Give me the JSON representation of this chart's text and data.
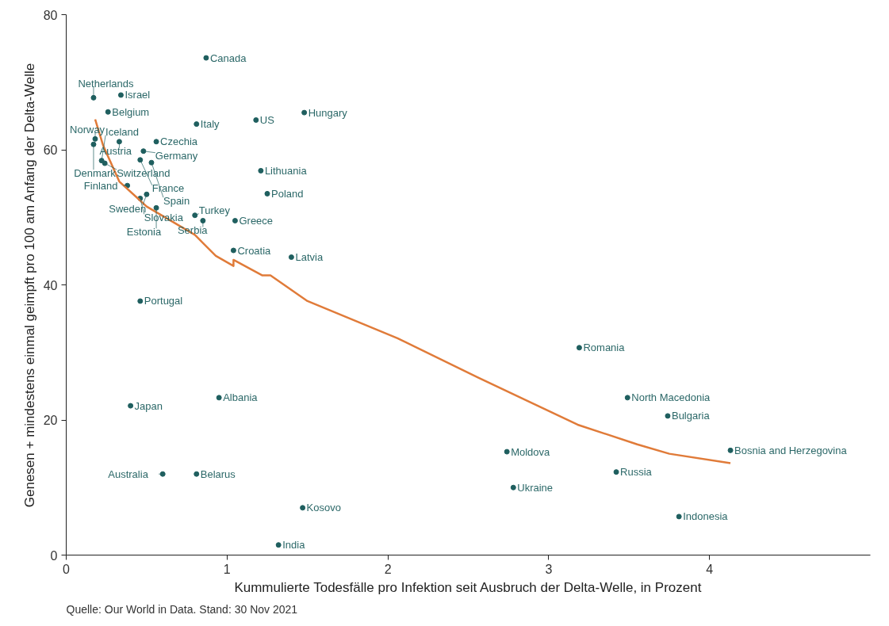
{
  "chart_data": {
    "type": "scatter",
    "xlabel": "Kummulierte Todesfälle pro Infektion seit Ausbruch der Delta-Welle, in Prozent",
    "ylabel": "Genesen + mindestens einmal geimpft pro 100 am Anfang der Delta-Welle",
    "xlim": [
      0,
      5
    ],
    "ylim": [
      0,
      80
    ],
    "xticks": [
      0,
      1,
      2,
      3,
      4
    ],
    "yticks": [
      0,
      20,
      40,
      60,
      80
    ],
    "grid": false,
    "series": [
      {
        "marker": "circle",
        "color": "#1f5f5f",
        "x": [
          0.87,
          0.34,
          0.17,
          0.26,
          0.81,
          1.18,
          1.48,
          0.18,
          0.17,
          0.33,
          0.56,
          0.48,
          0.22,
          0.24,
          0.46,
          0.53,
          1.21,
          0.38,
          0.5,
          0.46,
          1.25,
          0.56,
          0.8,
          0.85,
          1.05,
          1.04,
          1.4,
          0.46,
          3.19,
          0.95,
          0.4,
          3.49,
          3.74,
          2.74,
          4.13,
          0.6,
          0.81,
          3.42,
          2.78,
          1.47,
          3.81,
          1.32
        ],
        "values": [
          73.6,
          68.1,
          67.7,
          65.6,
          63.8,
          64.4,
          65.5,
          61.6,
          60.8,
          61.2,
          61.2,
          59.8,
          58.4,
          58.0,
          58.5,
          58.1,
          56.9,
          54.7,
          53.4,
          52.8,
          53.5,
          51.4,
          50.3,
          49.5,
          49.5,
          45.1,
          44.1,
          37.6,
          30.7,
          23.3,
          22.1,
          23.3,
          20.6,
          15.3,
          15.5,
          12.0,
          12.0,
          12.3,
          10.0,
          7.0,
          5.7,
          1.5
        ]
      },
      {
        "type": "line",
        "color": "#e07b39",
        "line_style": "solid",
        "x": [
          0.18,
          0.23,
          0.33,
          0.45,
          0.5,
          0.8,
          0.93,
          1.04,
          1.04,
          1.22,
          1.27,
          1.5,
          2.06,
          2.56,
          3.18,
          3.55,
          3.75,
          4.13
        ],
        "values": [
          64.5,
          60.6,
          55.3,
          52.7,
          51.6,
          47.4,
          44.3,
          42.8,
          43.7,
          41.4,
          41.4,
          37.6,
          32.1,
          26.3,
          19.3,
          16.4,
          15.0,
          13.6
        ]
      }
    ],
    "annotations": [
      {
        "text": "Canada",
        "x": 0.87,
        "y": 73.6
      },
      {
        "text": "Israel",
        "x": 0.34,
        "y": 68.1
      },
      {
        "text": "Netherlands",
        "x": 0.17,
        "y": 67.7
      },
      {
        "text": "Belgium",
        "x": 0.26,
        "y": 65.6
      },
      {
        "text": "Italy",
        "x": 0.81,
        "y": 63.8
      },
      {
        "text": "US",
        "x": 1.18,
        "y": 64.4
      },
      {
        "text": "Hungary",
        "x": 1.48,
        "y": 65.5
      },
      {
        "text": "Norway",
        "x": 0.18,
        "y": 61.6
      },
      {
        "text": "Denmark",
        "x": 0.17,
        "y": 60.8
      },
      {
        "text": "Austria",
        "x": 0.33,
        "y": 61.2
      },
      {
        "text": "Czechia",
        "x": 0.56,
        "y": 61.2
      },
      {
        "text": "Germany",
        "x": 0.48,
        "y": 59.8
      },
      {
        "text": "Iceland",
        "x": 0.22,
        "y": 58.4
      },
      {
        "text": "Switzerland",
        "x": 0.24,
        "y": 58.0
      },
      {
        "text": "France",
        "x": 0.46,
        "y": 58.5
      },
      {
        "text": "Spain",
        "x": 0.53,
        "y": 58.1
      },
      {
        "text": "Lithuania",
        "x": 1.21,
        "y": 56.9
      },
      {
        "text": "Finland",
        "x": 0.38,
        "y": 54.7
      },
      {
        "text": "Sweden",
        "x": 0.5,
        "y": 53.4
      },
      {
        "text": "Slovakia",
        "x": 0.46,
        "y": 52.8
      },
      {
        "text": "Poland",
        "x": 1.25,
        "y": 53.5
      },
      {
        "text": "Estonia",
        "x": 0.56,
        "y": 51.4
      },
      {
        "text": "Turkey",
        "x": 0.8,
        "y": 50.3
      },
      {
        "text": "Serbia",
        "x": 0.85,
        "y": 49.5
      },
      {
        "text": "Greece",
        "x": 1.05,
        "y": 49.5
      },
      {
        "text": "Croatia",
        "x": 1.04,
        "y": 45.1
      },
      {
        "text": "Latvia",
        "x": 1.4,
        "y": 44.1
      },
      {
        "text": "Portugal",
        "x": 0.46,
        "y": 37.6
      },
      {
        "text": "Romania",
        "x": 3.19,
        "y": 30.7
      },
      {
        "text": "Albania",
        "x": 0.95,
        "y": 23.3
      },
      {
        "text": "Japan",
        "x": 0.4,
        "y": 22.1
      },
      {
        "text": "North Macedonia",
        "x": 3.49,
        "y": 23.3
      },
      {
        "text": "Bulgaria",
        "x": 3.74,
        "y": 20.6
      },
      {
        "text": "Moldova",
        "x": 2.74,
        "y": 15.3
      },
      {
        "text": "Bosnia and Herzegovina",
        "x": 4.13,
        "y": 15.5
      },
      {
        "text": "Australia",
        "x": 0.6,
        "y": 12.0
      },
      {
        "text": "Belarus",
        "x": 0.81,
        "y": 12.0
      },
      {
        "text": "Russia",
        "x": 3.42,
        "y": 12.3
      },
      {
        "text": "Ukraine",
        "x": 2.78,
        "y": 10.0
      },
      {
        "text": "Kosovo",
        "x": 1.47,
        "y": 7.0
      },
      {
        "text": "Indonesia",
        "x": 3.81,
        "y": 5.7
      },
      {
        "text": "India",
        "x": 1.32,
        "y": 1.5
      },
      "Quelle: Our World in Data. Stand: 30 Nov 2021"
    ]
  }
}
